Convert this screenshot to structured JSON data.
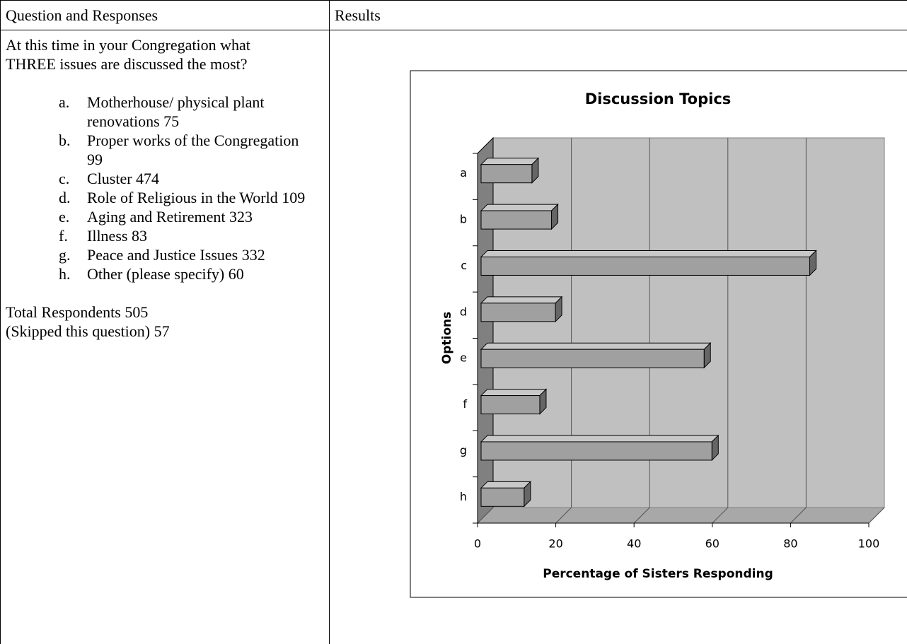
{
  "table": {
    "headers": [
      "Question and Responses",
      "Results"
    ],
    "question": "At this time in your Congregation what THREE issues are discussed the most?",
    "options": [
      {
        "letter": "a.",
        "text": "Motherhouse/ physical plant renovations 75"
      },
      {
        "letter": "b.",
        "text": "Proper works of the Congregation 99"
      },
      {
        "letter": "c.",
        "text": "Cluster 474"
      },
      {
        "letter": "d.",
        "text": "Role of Religious in the World 109"
      },
      {
        "letter": "e.",
        "text": "Aging and Retirement 323"
      },
      {
        "letter": "f.",
        "text": "Illness 83"
      },
      {
        "letter": "g.",
        "text": "Peace and Justice Issues 332"
      },
      {
        "letter": "h.",
        "text": "Other (please specify) 60"
      }
    ],
    "total": "Total Respondents 505",
    "skipped": "(Skipped this question) 57"
  },
  "chart_data": {
    "type": "bar3d_horizontal",
    "title": "Discussion Topics",
    "x_label": "Percentage of Sisters Responding",
    "y_label": "Options",
    "categories": [
      "a",
      "b",
      "c",
      "d",
      "e",
      "f",
      "g",
      "h"
    ],
    "values": [
      13,
      18,
      84,
      19,
      57,
      15,
      59,
      11
    ],
    "color": "#a0a0a0",
    "xlim": [
      0,
      100
    ],
    "xticks": [
      0,
      20,
      40,
      60,
      80,
      100
    ],
    "grid": true
  }
}
